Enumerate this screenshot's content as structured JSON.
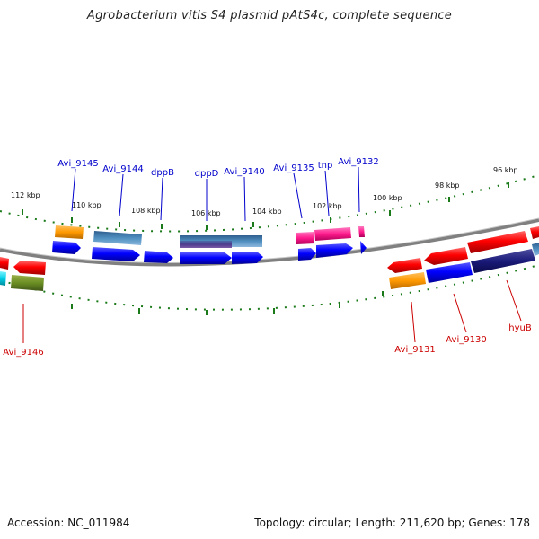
{
  "title": "Agrobacterium vitis S4 plasmid pAtS4c, complete sequence",
  "accession": "Accession: NC_011984",
  "summary": "Topology: circular; Length: 211,620 bp; Genes: 178",
  "colors": {
    "backbone": "#808080",
    "tick": "#1a7a1a",
    "forward_label": "#0000cc",
    "reverse_label": "#cc0000"
  },
  "ticks": [
    {
      "label": "112 kbp"
    },
    {
      "label": "110 kbp"
    },
    {
      "label": "108 kbp"
    },
    {
      "label": "106 kbp"
    },
    {
      "label": "104 kbp"
    },
    {
      "label": "102 kbp"
    },
    {
      "label": "100 kbp"
    },
    {
      "label": "98 kbp"
    },
    {
      "label": "96 kbp"
    }
  ],
  "top_labels": [
    {
      "text": "Avi_9145"
    },
    {
      "text": "Avi_9144"
    },
    {
      "text": "dppB"
    },
    {
      "text": "dppD"
    },
    {
      "text": "Avi_9140"
    },
    {
      "text": "Avi_9135"
    },
    {
      "text": "tnp"
    },
    {
      "text": "Avi_9132"
    }
  ],
  "bottom_labels": [
    {
      "text": "Avi_9146"
    },
    {
      "text": "Avi_9131"
    },
    {
      "text": "Avi_9130"
    },
    {
      "text": "hyuB"
    }
  ]
}
